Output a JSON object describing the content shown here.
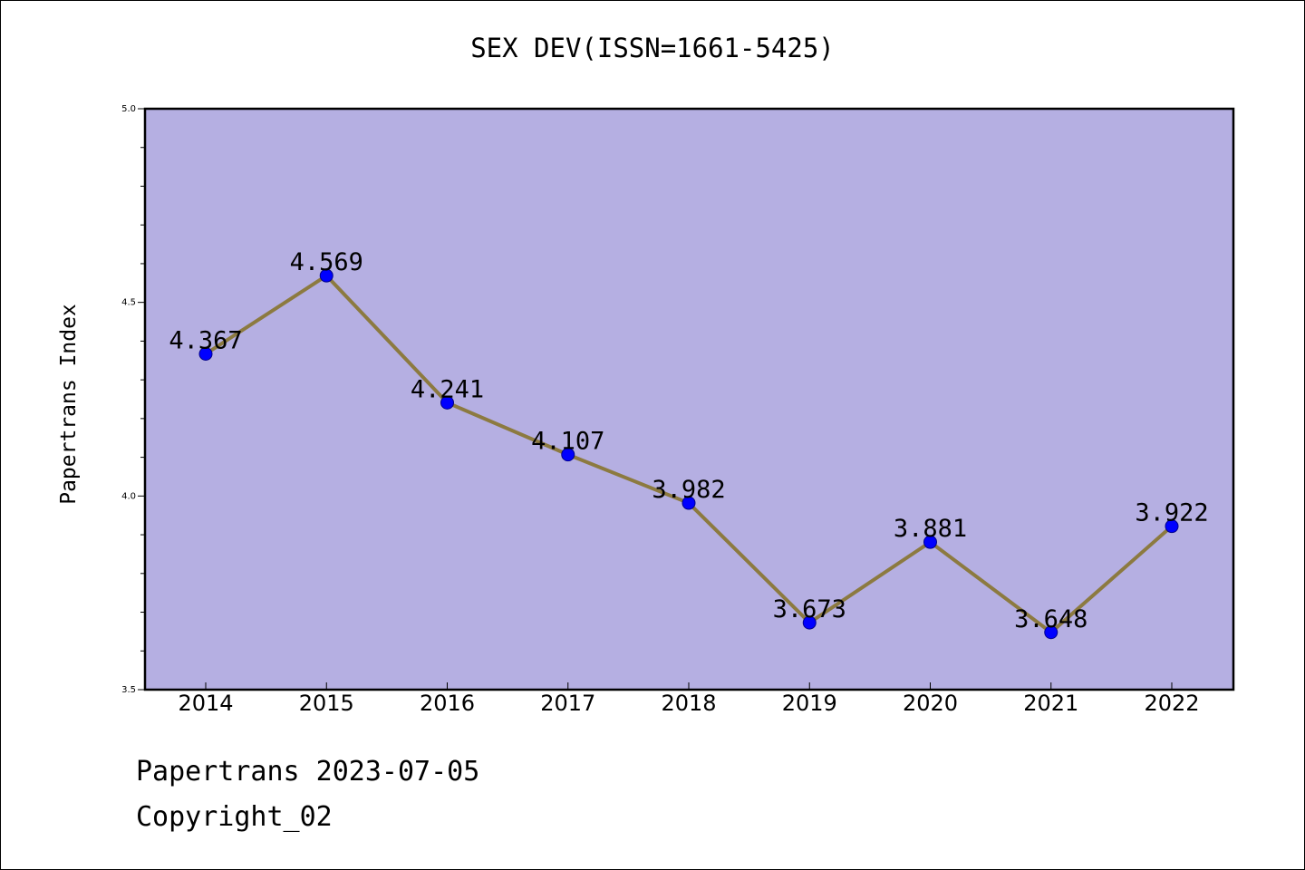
{
  "title": "SEX DEV(ISSN=1661-5425)",
  "footer": {
    "line1": "Papertrans 2023-07-05",
    "line2": "Copyright_02"
  },
  "colors": {
    "plot_background": "#b5afe2",
    "line": "#8c7a40",
    "marker": "#0000ff"
  },
  "chart_data": {
    "type": "line",
    "title": "SEX DEV(ISSN=1661-5425)",
    "xlabel": "",
    "ylabel": "Papertrans Index",
    "categories": [
      "2014",
      "2015",
      "2016",
      "2017",
      "2018",
      "2019",
      "2020",
      "2021",
      "2022"
    ],
    "series": [
      {
        "values": [
          4.367,
          4.569,
          4.241,
          4.107,
          3.982,
          3.673,
          3.881,
          3.648,
          3.922
        ],
        "labels": [
          "4.367",
          "4.569",
          "4.241",
          "4.107",
          "3.982",
          "3.673",
          "3.881",
          "3.648",
          "3.922"
        ]
      }
    ],
    "ylim": [
      3.5,
      5.0
    ],
    "yticks": [
      "3.5",
      "4.0",
      "4.5",
      "5.0"
    ],
    "y_minor_step": 0.1,
    "grid": false,
    "legend": "none"
  }
}
